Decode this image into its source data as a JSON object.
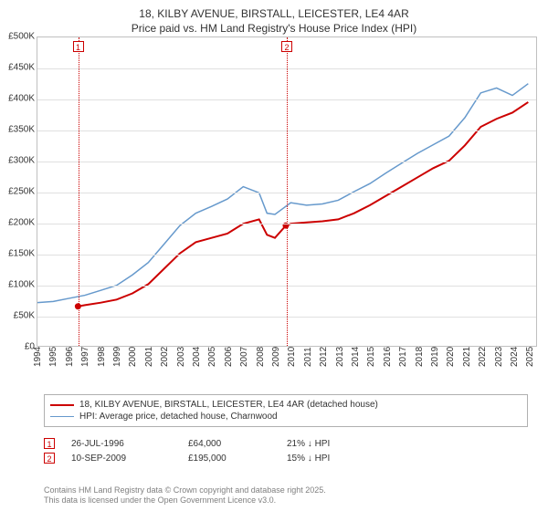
{
  "title": {
    "line1": "18, KILBY AVENUE, BIRSTALL, LEICESTER, LE4 4AR",
    "line2": "Price paid vs. HM Land Registry's House Price Index (HPI)"
  },
  "chart": {
    "type": "line",
    "background_color": "#ffffff",
    "border_color": "#c0c0c0",
    "grid_color": "#e0e0e0",
    "ylim": [
      0,
      500000
    ],
    "ytick_step": 50000,
    "yticks": [
      "£0",
      "£50K",
      "£100K",
      "£150K",
      "£200K",
      "£250K",
      "£300K",
      "£350K",
      "£400K",
      "£450K",
      "£500K"
    ],
    "xlim": [
      1994,
      2025.5
    ],
    "xticks": [
      1994,
      1995,
      1996,
      1997,
      1998,
      1999,
      2000,
      2001,
      2002,
      2003,
      2004,
      2005,
      2006,
      2007,
      2008,
      2009,
      2010,
      2011,
      2012,
      2013,
      2014,
      2015,
      2016,
      2017,
      2018,
      2019,
      2020,
      2021,
      2022,
      2023,
      2024,
      2025
    ],
    "series": [
      {
        "name": "property",
        "color": "#cc0000",
        "width": 2,
        "points": [
          [
            1996.56,
            64000
          ],
          [
            1997,
            66000
          ],
          [
            1998,
            70000
          ],
          [
            1999,
            75000
          ],
          [
            2000,
            85000
          ],
          [
            2001,
            100000
          ],
          [
            2002,
            125000
          ],
          [
            2003,
            150000
          ],
          [
            2004,
            168000
          ],
          [
            2005,
            175000
          ],
          [
            2006,
            182000
          ],
          [
            2007,
            198000
          ],
          [
            2008,
            205000
          ],
          [
            2008.5,
            180000
          ],
          [
            2009,
            175000
          ],
          [
            2009.69,
            195000
          ],
          [
            2010,
            198000
          ],
          [
            2011,
            200000
          ],
          [
            2012,
            202000
          ],
          [
            2013,
            205000
          ],
          [
            2014,
            215000
          ],
          [
            2015,
            228000
          ],
          [
            2016,
            243000
          ],
          [
            2017,
            258000
          ],
          [
            2018,
            273000
          ],
          [
            2019,
            288000
          ],
          [
            2020,
            300000
          ],
          [
            2021,
            325000
          ],
          [
            2022,
            355000
          ],
          [
            2023,
            368000
          ],
          [
            2024,
            378000
          ],
          [
            2025,
            395000
          ]
        ]
      },
      {
        "name": "hpi",
        "color": "#6699cc",
        "width": 1.5,
        "points": [
          [
            1994,
            70000
          ],
          [
            1995,
            72000
          ],
          [
            1996,
            77000
          ],
          [
            1997,
            82000
          ],
          [
            1998,
            90000
          ],
          [
            1999,
            98000
          ],
          [
            2000,
            115000
          ],
          [
            2001,
            135000
          ],
          [
            2002,
            165000
          ],
          [
            2003,
            195000
          ],
          [
            2004,
            215000
          ],
          [
            2005,
            226000
          ],
          [
            2006,
            238000
          ],
          [
            2007,
            258000
          ],
          [
            2008,
            248000
          ],
          [
            2008.5,
            215000
          ],
          [
            2009,
            213000
          ],
          [
            2010,
            232000
          ],
          [
            2011,
            228000
          ],
          [
            2012,
            230000
          ],
          [
            2013,
            236000
          ],
          [
            2014,
            250000
          ],
          [
            2015,
            263000
          ],
          [
            2016,
            280000
          ],
          [
            2017,
            296000
          ],
          [
            2018,
            312000
          ],
          [
            2019,
            326000
          ],
          [
            2020,
            340000
          ],
          [
            2021,
            370000
          ],
          [
            2022,
            410000
          ],
          [
            2023,
            418000
          ],
          [
            2024,
            406000
          ],
          [
            2025,
            425000
          ]
        ]
      }
    ],
    "markers": [
      {
        "id": "1",
        "x": 1996.56,
        "y": 64000
      },
      {
        "id": "2",
        "x": 2009.69,
        "y": 195000
      }
    ],
    "point_marker": {
      "fill": "#cc0000",
      "radius": 3.5
    }
  },
  "legend": {
    "items": [
      {
        "color": "#cc0000",
        "width": 2,
        "label": "18, KILBY AVENUE, BIRSTALL, LEICESTER, LE4 4AR (detached house)"
      },
      {
        "color": "#6699cc",
        "width": 1.5,
        "label": "HPI: Average price, detached house, Charnwood"
      }
    ]
  },
  "annotations": [
    {
      "id": "1",
      "date": "26-JUL-1996",
      "price": "£64,000",
      "delta": "21% ↓ HPI"
    },
    {
      "id": "2",
      "date": "10-SEP-2009",
      "price": "£195,000",
      "delta": "15% ↓ HPI"
    }
  ],
  "footer": {
    "line1": "Contains HM Land Registry data © Crown copyright and database right 2025.",
    "line2": "This data is licensed under the Open Government Licence v3.0."
  }
}
